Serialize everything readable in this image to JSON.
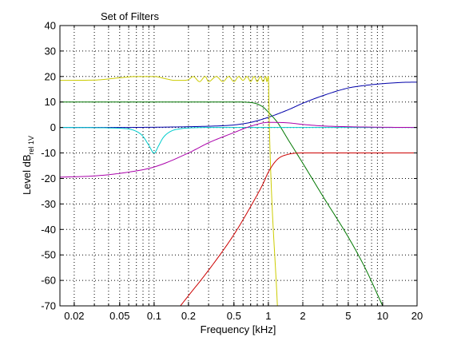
{
  "chart_data": {
    "type": "line",
    "title": "Set of Filters",
    "xlabel": "Frequency [kHz]",
    "ylabel_main": "Level dB",
    "ylabel_sub": "rel 1V",
    "x_scale": "log",
    "xlim": [
      0.015,
      20
    ],
    "ylim": [
      -70,
      40
    ],
    "grid": true,
    "x_ticks": [
      0.02,
      0.05,
      0.1,
      0.2,
      0.5,
      1,
      2,
      5,
      10,
      20
    ],
    "x_tick_labels": [
      "0.02",
      "0.05",
      "0.1",
      "0.2",
      "0.5",
      "1",
      "2",
      "5",
      "10",
      "20"
    ],
    "y_ticks": [
      40,
      30,
      20,
      10,
      0,
      -10,
      -20,
      -30,
      -40,
      -50,
      -60,
      -70
    ],
    "y_tick_labels": [
      "40",
      "30",
      "20",
      "10",
      "0",
      "-10",
      "-20",
      "-30",
      "-40",
      "-50",
      "-60",
      "-70"
    ],
    "series": [
      {
        "color": "#0000aa",
        "x": [
          0.015,
          0.05,
          0.1,
          0.2,
          0.3,
          0.5,
          0.7,
          1,
          1.5,
          2,
          3,
          5,
          7,
          10,
          15,
          20
        ],
        "y": [
          0,
          0,
          0.1,
          0.3,
          0.5,
          1,
          2,
          4,
          7,
          9.5,
          12.5,
          15.5,
          16.5,
          17.2,
          17.7,
          17.8
        ]
      },
      {
        "color": "#007700",
        "x": [
          0.015,
          0.1,
          0.5,
          0.7,
          0.8,
          0.9,
          1,
          1.2,
          1.5,
          2,
          3,
          5,
          7,
          10
        ],
        "y": [
          10,
          10,
          10,
          9.8,
          9.2,
          8,
          6,
          2,
          -5,
          -14,
          -27,
          -43,
          -55,
          -70
        ]
      },
      {
        "color": "#cccc00",
        "x": [
          0.015,
          0.03,
          0.05,
          0.07,
          0.1,
          0.13,
          0.15,
          0.18,
          0.2,
          0.22,
          0.25,
          0.28,
          0.3,
          0.35,
          0.4,
          0.45,
          0.5,
          0.55,
          0.6,
          0.65,
          0.7,
          0.75,
          0.8,
          0.85,
          0.9,
          0.95,
          0.97,
          1.0,
          1.02,
          1.2
        ],
        "y": [
          18.5,
          18.6,
          19.5,
          20,
          20,
          19,
          18.5,
          18.5,
          18.8,
          20,
          18,
          20,
          18,
          20,
          18,
          20,
          18,
          20,
          18.5,
          20,
          18,
          20,
          18,
          20,
          18,
          20,
          18,
          20,
          0,
          -70
        ]
      },
      {
        "color": "#00cccc",
        "x": [
          0.015,
          0.05,
          0.07,
          0.08,
          0.09,
          0.1,
          0.11,
          0.12,
          0.14,
          0.17,
          0.2,
          0.3,
          1,
          20
        ],
        "y": [
          0,
          -0.3,
          -1.5,
          -3.5,
          -7,
          -10,
          -7,
          -4,
          -1.5,
          -0.5,
          -0.2,
          0,
          0,
          0
        ]
      },
      {
        "color": "#aa00aa",
        "x": [
          0.015,
          0.03,
          0.05,
          0.1,
          0.2,
          0.3,
          0.5,
          0.7,
          1,
          1.5,
          2,
          3,
          5,
          10,
          20
        ],
        "y": [
          -19.5,
          -19,
          -18,
          -15.5,
          -10,
          -6,
          -2,
          0.5,
          2,
          1.8,
          1.2,
          0.6,
          0.3,
          0.1,
          0
        ]
      },
      {
        "color": "#cc0000",
        "x": [
          0.17,
          0.2,
          0.3,
          0.5,
          0.7,
          0.9,
          1,
          1.2,
          1.5,
          2,
          3,
          5,
          10,
          20
        ],
        "y": [
          -70,
          -66,
          -56,
          -42,
          -31,
          -22,
          -17.5,
          -12.5,
          -10.5,
          -10,
          -10,
          -10,
          -10,
          -10
        ]
      }
    ]
  }
}
